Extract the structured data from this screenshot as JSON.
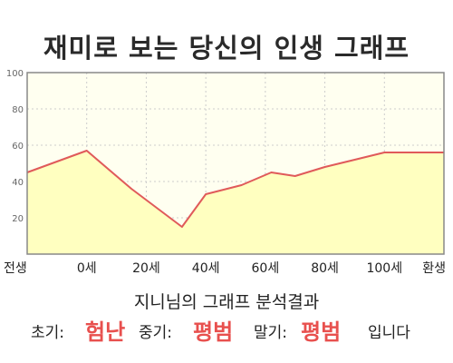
{
  "title": "재미로 보는 당신의 인생 그래프",
  "chart_data": {
    "type": "area",
    "x_tick_labels": [
      "전생",
      "0세",
      "20세",
      "40세",
      "60세",
      "80세",
      "100세",
      "환생"
    ],
    "y_ticks": [
      20,
      40,
      60,
      80,
      100
    ],
    "ylim": [
      0,
      100
    ],
    "grid": true,
    "points": [
      {
        "age": -20,
        "value": 45
      },
      {
        "age": 0,
        "value": 57
      },
      {
        "age": 15,
        "value": 36
      },
      {
        "age": 32,
        "value": 15
      },
      {
        "age": 40,
        "value": 33
      },
      {
        "age": 52,
        "value": 38
      },
      {
        "age": 62,
        "value": 45
      },
      {
        "age": 70,
        "value": 43
      },
      {
        "age": 80,
        "value": 48
      },
      {
        "age": 100,
        "value": 56
      },
      {
        "age": 120,
        "value": 56
      }
    ],
    "fill_color": "#ffffc0",
    "line_color": "#e05a5a",
    "plot_bg": "#fffff0"
  },
  "result": {
    "line1": "지니님의 그래프 분석결과",
    "early_label": "초기:",
    "early_value": "험난",
    "mid_label": "중기:",
    "mid_value": "평범",
    "late_label": "말기:",
    "late_value": "평범",
    "suffix": "입니다"
  }
}
